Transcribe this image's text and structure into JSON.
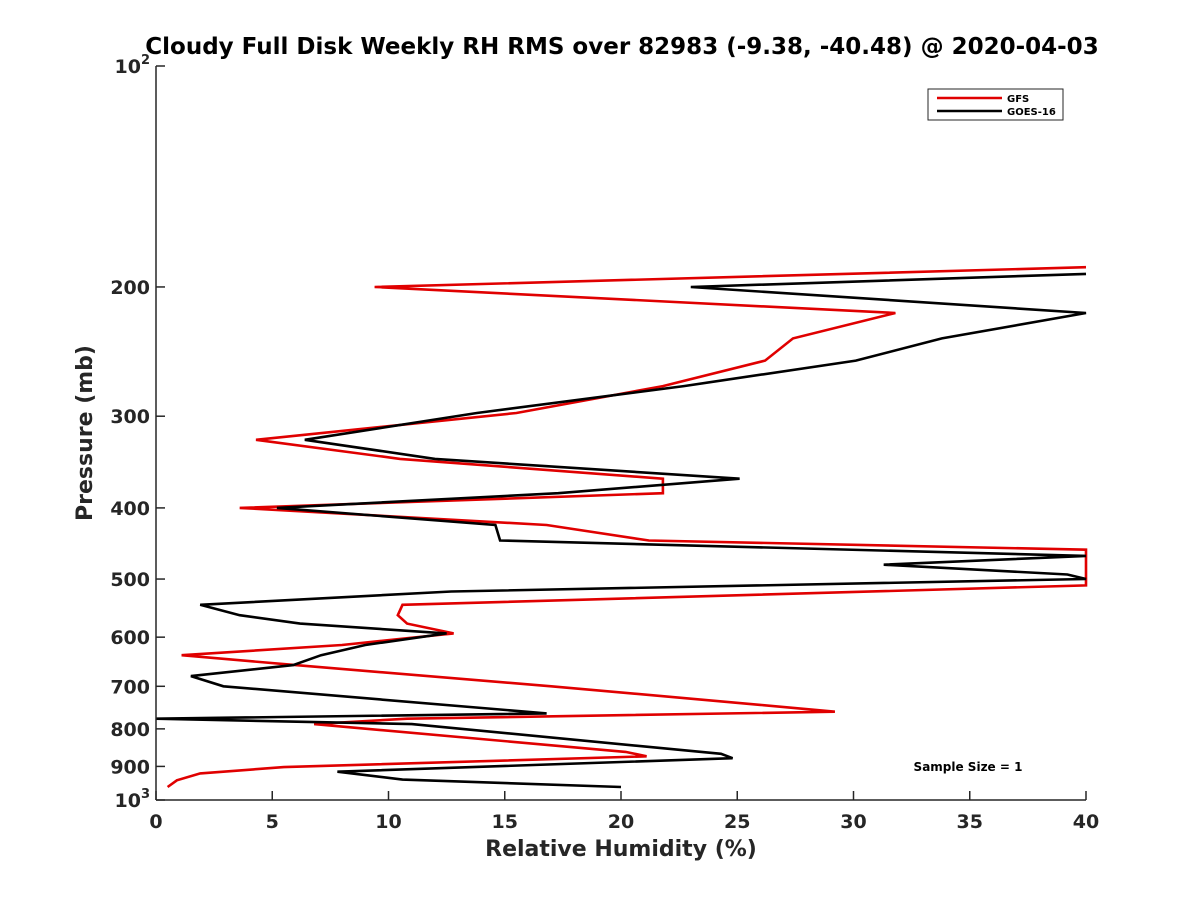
{
  "chart_data": {
    "type": "line",
    "title": "Cloudy Full Disk Weekly RH RMS over 82983 (-9.38, -40.48) @ 2020-04-03",
    "xlabel": "Relative Humidity (%)",
    "ylabel": "Pressure (mb)",
    "xlim": [
      0,
      40
    ],
    "ylim": [
      100,
      1000
    ],
    "y_scale": "log",
    "y_reversed": true,
    "x_ticks": [
      "0",
      "5",
      "10",
      "15",
      "20",
      "25",
      "30",
      "35",
      "40"
    ],
    "y_ticks": [
      {
        "value": 100,
        "base": "10",
        "exp": "2"
      },
      {
        "value": 200,
        "label": "200"
      },
      {
        "value": 300,
        "label": "300"
      },
      {
        "value": 400,
        "label": "400"
      },
      {
        "value": 500,
        "label": "500"
      },
      {
        "value": 600,
        "label": "600"
      },
      {
        "value": 700,
        "label": "700"
      },
      {
        "value": 800,
        "label": "800"
      },
      {
        "value": 900,
        "label": "900"
      },
      {
        "value": 1000,
        "base": "10",
        "exp": "3"
      }
    ],
    "grid": false,
    "legend_position": "top-right",
    "annotation": "Sample Size = 1",
    "series": [
      {
        "name": "GFS",
        "color": "#e00000",
        "points": [
          [
            40.0,
            188
          ],
          [
            9.4,
            200
          ],
          [
            31.8,
            217
          ],
          [
            27.4,
            235
          ],
          [
            26.2,
            252
          ],
          [
            21.8,
            273
          ],
          [
            15.5,
            297
          ],
          [
            4.3,
            323
          ],
          [
            10.5,
            343
          ],
          [
            21.8,
            365
          ],
          [
            21.8,
            382
          ],
          [
            3.6,
            400
          ],
          [
            16.8,
            422
          ],
          [
            21.2,
            443
          ],
          [
            40.0,
            456
          ],
          [
            40.0,
            510
          ],
          [
            10.6,
            542
          ],
          [
            10.4,
            560
          ],
          [
            10.8,
            575
          ],
          [
            12.8,
            593
          ],
          [
            8.0,
            615
          ],
          [
            1.1,
            635
          ],
          [
            6.0,
            655
          ],
          [
            17.0,
            700
          ],
          [
            26.0,
            742
          ],
          [
            29.2,
            758
          ],
          [
            10.8,
            775
          ],
          [
            6.8,
            788
          ],
          [
            20.2,
            860
          ],
          [
            21.1,
            872
          ],
          [
            5.5,
            902
          ],
          [
            1.9,
            920
          ],
          [
            0.9,
            940
          ],
          [
            0.5,
            960
          ]
        ]
      },
      {
        "name": "GOES-16",
        "color": "#000000",
        "points": [
          [
            40.0,
            192
          ],
          [
            23.0,
            200
          ],
          [
            40.0,
            217
          ],
          [
            33.8,
            235
          ],
          [
            30.1,
            252
          ],
          [
            22.7,
            273
          ],
          [
            13.8,
            297
          ],
          [
            6.4,
            323
          ],
          [
            12.0,
            343
          ],
          [
            25.1,
            365
          ],
          [
            17.3,
            382
          ],
          [
            5.2,
            400
          ],
          [
            14.6,
            422
          ],
          [
            14.8,
            443
          ],
          [
            40.0,
            465
          ],
          [
            31.3,
            478
          ],
          [
            39.2,
            493
          ],
          [
            40.0,
            500
          ],
          [
            12.7,
            520
          ],
          [
            1.9,
            542
          ],
          [
            3.6,
            560
          ],
          [
            6.2,
            575
          ],
          [
            12.5,
            593
          ],
          [
            9.0,
            615
          ],
          [
            7.1,
            635
          ],
          [
            5.9,
            655
          ],
          [
            1.5,
            678
          ],
          [
            2.9,
            700
          ],
          [
            16.8,
            762
          ],
          [
            0.0,
            775
          ],
          [
            11.0,
            788
          ],
          [
            24.3,
            865
          ],
          [
            24.8,
            877
          ],
          [
            7.8,
            915
          ],
          [
            10.6,
            938
          ],
          [
            20.0,
            960
          ]
        ]
      }
    ]
  }
}
